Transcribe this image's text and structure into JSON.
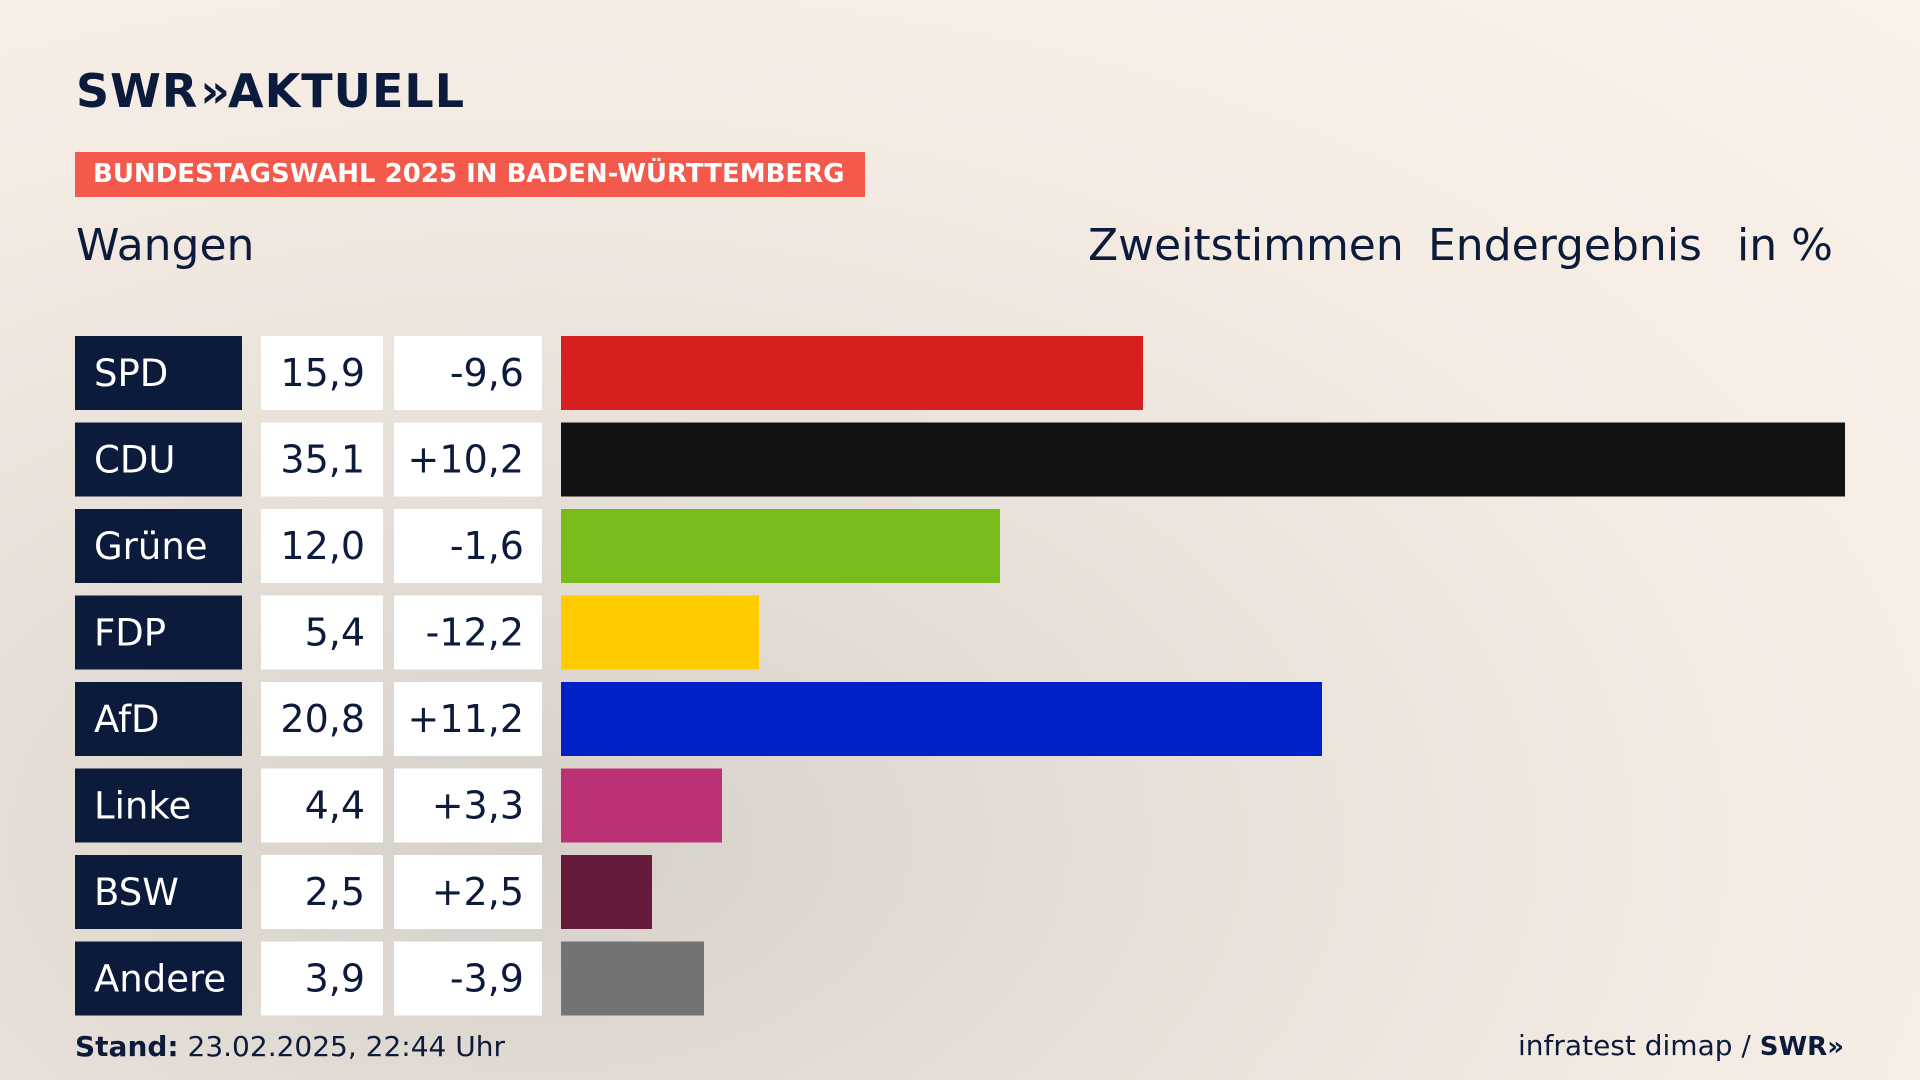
{
  "header": {
    "logo_text": "SWR",
    "logo_chevrons": "»",
    "logo_suffix": "AKTUELL",
    "badge": "BUNDESTAGSWAHL 2025 IN BADEN-WÜRTTEMBERG",
    "region": "Wangen",
    "vote_type": "Zweitstimmen",
    "result_type": "Endergebnis",
    "unit": "in %"
  },
  "footer": {
    "stand_label": "Stand:",
    "stand_value": "23.02.2025, 22:44 Uhr",
    "source": "infratest dimap /",
    "source_logo": "SWR»"
  },
  "chart_data": {
    "type": "bar",
    "orientation": "horizontal",
    "categories": [
      "SPD",
      "CDU",
      "Grüne",
      "FDP",
      "AfD",
      "Linke",
      "BSW",
      "Andere"
    ],
    "values": [
      15.9,
      35.1,
      12.0,
      5.4,
      20.8,
      4.4,
      2.5,
      3.9
    ],
    "value_labels": [
      "15,9",
      "35,1",
      "12,0",
      "5,4",
      "20,8",
      "4,4",
      "2,5",
      "3,9"
    ],
    "change_labels": [
      "-9,6",
      "+10,2",
      "-1,6",
      "-12,2",
      "+11,2",
      "+3,3",
      "+2,5",
      "-3,9"
    ],
    "colors": [
      "#d71f1f",
      "#121212",
      "#78bc1b",
      "#ffcc00",
      "#0020c8",
      "#bc3076",
      "#661a3c",
      "#737373"
    ],
    "label_bg": "#0c1b3c",
    "value_bg": "#ffffff",
    "xlim": [
      0,
      35.1
    ],
    "grid": false,
    "legend": "none"
  }
}
